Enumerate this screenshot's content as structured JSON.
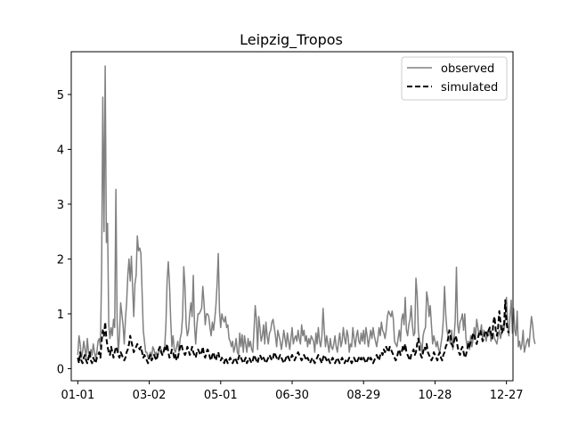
{
  "chart_data": {
    "type": "line",
    "title": "Leipzig_Tropos",
    "xlabel": "",
    "ylabel": "",
    "x_ticks": [
      "01-01",
      "03-02",
      "05-01",
      "06-30",
      "08-29",
      "10-28",
      "12-27"
    ],
    "xlim": [
      -5.5,
      365.5
    ],
    "y_ticks": [
      "0",
      "1",
      "2",
      "3",
      "4",
      "5"
    ],
    "ylim": [
      -0.22,
      5.78
    ],
    "grid": false,
    "legend_position": "upper right",
    "x_start": 1,
    "series": [
      {
        "name": "observed",
        "color": "#808080",
        "style": "solid",
        "values": [
          0.25,
          0.6,
          0.45,
          0.2,
          0.3,
          0.5,
          0.35,
          0.2,
          0.55,
          0.3,
          0.2,
          0.35,
          0.25,
          0.45,
          0.3,
          0.2,
          0.3,
          0.5,
          0.55,
          0.4,
          1.8,
          4.95,
          2.5,
          5.52,
          2.3,
          2.65,
          0.8,
          0.55,
          0.75,
          0.6,
          0.9,
          0.75,
          3.27,
          0.9,
          0.3,
          0.6,
          1.2,
          1.0,
          0.8,
          0.45,
          0.9,
          1.2,
          1.7,
          2.0,
          1.6,
          2.05,
          1.5,
          0.95,
          1.55,
          1.7,
          2.42,
          2.15,
          2.2,
          2.1,
          1.4,
          0.7,
          0.5,
          0.3,
          0.3,
          0.2,
          0.25,
          0.3,
          0.2,
          0.4,
          0.35,
          0.25,
          0.3,
          0.2,
          0.3,
          0.4,
          0.35,
          0.25,
          0.3,
          0.4,
          0.8,
          1.6,
          1.95,
          1.55,
          0.9,
          0.4,
          0.6,
          0.35,
          0.3,
          0.4,
          0.5,
          0.3,
          0.55,
          0.65,
          0.95,
          1.86,
          1.5,
          0.8,
          0.6,
          0.7,
          1.0,
          1.2,
          0.95,
          1.7,
          0.8,
          0.45,
          0.8,
          1.0,
          1.0,
          1.05,
          1.1,
          1.5,
          1.2,
          0.8,
          1.0,
          1.0,
          0.95,
          0.75,
          0.6,
          0.85,
          0.7,
          0.9,
          1.15,
          1.55,
          2.1,
          1.05,
          0.75,
          1.0,
          0.9,
          0.85,
          0.95,
          0.75,
          0.8,
          0.55,
          0.5,
          0.4,
          0.5,
          0.3,
          0.4,
          0.55,
          0.3,
          0.25,
          0.65,
          0.4,
          0.62,
          0.3,
          0.6,
          0.45,
          0.3,
          0.55,
          0.4,
          0.5,
          0.35,
          0.3,
          0.7,
          1.15,
          0.9,
          0.35,
          0.95,
          0.75,
          0.5,
          0.6,
          0.8,
          0.45,
          0.85,
          0.6,
          0.45,
          0.65,
          0.7,
          0.85,
          0.9,
          0.75,
          0.6,
          0.4,
          0.7,
          0.6,
          0.5,
          0.35,
          0.5,
          0.7,
          0.55,
          0.4,
          0.65,
          0.5,
          0.35,
          0.55,
          0.75,
          0.45,
          0.55,
          0.6,
          0.5,
          0.7,
          0.55,
          0.45,
          0.8,
          0.6,
          0.7,
          0.5,
          0.6,
          0.4,
          0.55,
          0.45,
          0.6,
          0.55,
          0.5,
          0.3,
          0.65,
          0.45,
          0.75,
          0.5,
          0.4,
          0.6,
          1.1,
          0.7,
          0.4,
          0.6,
          0.45,
          0.3,
          0.55,
          0.4,
          0.35,
          0.45,
          0.6,
          0.4,
          0.3,
          0.5,
          0.65,
          0.4,
          0.5,
          0.75,
          0.55,
          0.45,
          0.7,
          0.6,
          0.3,
          0.45,
          0.4,
          0.75,
          0.55,
          0.4,
          0.6,
          0.7,
          0.5,
          0.45,
          0.65,
          0.5,
          0.7,
          0.45,
          0.75,
          0.6,
          0.4,
          0.55,
          0.7,
          0.55,
          0.75,
          0.6,
          0.5,
          0.4,
          0.55,
          0.75,
          0.6,
          0.85,
          0.7,
          0.65,
          0.55,
          0.7,
          0.95,
          1.05,
          1.0,
          0.95,
          1.05,
          0.9,
          0.5,
          0.45,
          0.4,
          0.55,
          0.7,
          0.5,
          0.9,
          1.0,
          0.8,
          1.3,
          0.7,
          0.6,
          0.8,
          0.9,
          1.15,
          0.8,
          0.6,
          0.65,
          1.65,
          1.35,
          0.7,
          0.5,
          0.45,
          0.3,
          0.6,
          0.7,
          0.75,
          1.4,
          1.25,
          0.95,
          1.15,
          0.8,
          0.45,
          0.6,
          0.5,
          0.4,
          0.5,
          0.35,
          0.3,
          0.45,
          0.6,
          0.9,
          1.5,
          1.0,
          0.7,
          0.6,
          0.55,
          0.45,
          0.7,
          0.35,
          0.55,
          0.9,
          1.85,
          0.8,
          0.65,
          0.85,
          0.9,
          1.0,
          0.7,
          1.0,
          0.55,
          0.4,
          0.5,
          0.35,
          0.6,
          0.4,
          0.55,
          0.75,
          0.55,
          0.9,
          0.75,
          0.6,
          0.65,
          0.8,
          0.55,
          0.7,
          0.6,
          0.5,
          0.65,
          0.6,
          0.75,
          0.5,
          0.6,
          0.65,
          0.55,
          0.5,
          0.45,
          0.6,
          0.7,
          0.55,
          0.65,
          0.8,
          0.7,
          0.9,
          1.3,
          0.85,
          0.6,
          0.95,
          1.25,
          0.65,
          1.1,
          0.7,
          0.6,
          1.05,
          0.4,
          0.5,
          0.35,
          0.45,
          0.7,
          0.3,
          0.4,
          0.5,
          0.55,
          0.4,
          0.7,
          0.95,
          0.8,
          0.55,
          0.45
        ]
      },
      {
        "name": "simulated",
        "color": "#000000",
        "style": "dashed",
        "values": [
          0.2,
          0.1,
          0.3,
          0.15,
          0.1,
          0.2,
          0.25,
          0.15,
          0.1,
          0.2,
          0.3,
          0.15,
          0.1,
          0.2,
          0.15,
          0.1,
          0.2,
          0.25,
          0.3,
          0.2,
          0.5,
          0.7,
          0.6,
          0.85,
          0.55,
          0.4,
          0.3,
          0.25,
          0.4,
          0.3,
          0.2,
          0.3,
          0.4,
          0.35,
          0.25,
          0.2,
          0.3,
          0.25,
          0.2,
          0.15,
          0.2,
          0.3,
          0.35,
          0.45,
          0.6,
          0.5,
          0.4,
          0.3,
          0.35,
          0.4,
          0.45,
          0.4,
          0.35,
          0.4,
          0.3,
          0.2,
          0.25,
          0.2,
          0.15,
          0.1,
          0.2,
          0.25,
          0.15,
          0.2,
          0.25,
          0.2,
          0.15,
          0.25,
          0.35,
          0.4,
          0.3,
          0.25,
          0.3,
          0.4,
          0.35,
          0.45,
          0.3,
          0.2,
          0.25,
          0.35,
          0.3,
          0.2,
          0.25,
          0.15,
          0.2,
          0.3,
          0.4,
          0.45,
          0.35,
          0.3,
          0.25,
          0.3,
          0.4,
          0.35,
          0.25,
          0.3,
          0.4,
          0.3,
          0.25,
          0.2,
          0.3,
          0.35,
          0.3,
          0.25,
          0.3,
          0.4,
          0.25,
          0.2,
          0.3,
          0.35,
          0.3,
          0.2,
          0.15,
          0.25,
          0.3,
          0.2,
          0.15,
          0.25,
          0.3,
          0.2,
          0.15,
          0.2,
          0.15,
          0.1,
          0.2,
          0.15,
          0.1,
          0.15,
          0.2,
          0.15,
          0.1,
          0.15,
          0.2,
          0.15,
          0.1,
          0.2,
          0.25,
          0.2,
          0.15,
          0.1,
          0.15,
          0.2,
          0.1,
          0.15,
          0.2,
          0.15,
          0.1,
          0.15,
          0.25,
          0.2,
          0.15,
          0.1,
          0.2,
          0.25,
          0.2,
          0.15,
          0.2,
          0.15,
          0.1,
          0.15,
          0.2,
          0.25,
          0.2,
          0.15,
          0.2,
          0.3,
          0.25,
          0.2,
          0.15,
          0.2,
          0.25,
          0.2,
          0.15,
          0.1,
          0.15,
          0.2,
          0.25,
          0.2,
          0.15,
          0.2,
          0.25,
          0.2,
          0.15,
          0.2,
          0.25,
          0.3,
          0.25,
          0.2,
          0.15,
          0.2,
          0.25,
          0.2,
          0.15,
          0.2,
          0.15,
          0.1,
          0.15,
          0.2,
          0.15,
          0.1,
          0.15,
          0.2,
          0.25,
          0.2,
          0.15,
          0.1,
          0.2,
          0.25,
          0.2,
          0.15,
          0.2,
          0.15,
          0.1,
          0.15,
          0.2,
          0.15,
          0.1,
          0.15,
          0.2,
          0.15,
          0.1,
          0.15,
          0.2,
          0.15,
          0.1,
          0.15,
          0.1,
          0.15,
          0.2,
          0.15,
          0.1,
          0.15,
          0.2,
          0.15,
          0.1,
          0.15,
          0.2,
          0.15,
          0.2,
          0.15,
          0.2,
          0.15,
          0.1,
          0.15,
          0.2,
          0.15,
          0.2,
          0.15,
          0.1,
          0.15,
          0.2,
          0.25,
          0.2,
          0.15,
          0.25,
          0.3,
          0.25,
          0.35,
          0.3,
          0.4,
          0.35,
          0.3,
          0.4,
          0.35,
          0.3,
          0.25,
          0.2,
          0.15,
          0.2,
          0.3,
          0.35,
          0.25,
          0.3,
          0.4,
          0.35,
          0.45,
          0.3,
          0.25,
          0.2,
          0.15,
          0.25,
          0.3,
          0.35,
          0.25,
          0.3,
          0.45,
          0.55,
          0.35,
          0.25,
          0.2,
          0.3,
          0.4,
          0.35,
          0.45,
          0.3,
          0.25,
          0.2,
          0.15,
          0.2,
          0.3,
          0.25,
          0.2,
          0.15,
          0.25,
          0.3,
          0.2,
          0.15,
          0.25,
          0.3,
          0.4,
          0.45,
          0.55,
          0.7,
          0.6,
          0.45,
          0.4,
          0.5,
          0.6,
          0.55,
          0.4,
          0.3,
          0.25,
          0.35,
          0.4,
          0.3,
          0.2,
          0.25,
          0.35,
          0.45,
          0.4,
          0.5,
          0.55,
          0.65,
          0.6,
          0.5,
          0.45,
          0.55,
          0.65,
          0.7,
          0.6,
          0.5,
          0.55,
          0.65,
          0.7,
          0.6,
          0.7,
          0.75,
          0.65,
          0.55,
          0.85,
          0.95,
          0.7,
          0.6,
          0.75,
          1.05,
          0.85,
          0.65,
          0.7,
          0.8,
          1.25,
          0.85,
          0.7,
          0.65
        ]
      }
    ]
  }
}
